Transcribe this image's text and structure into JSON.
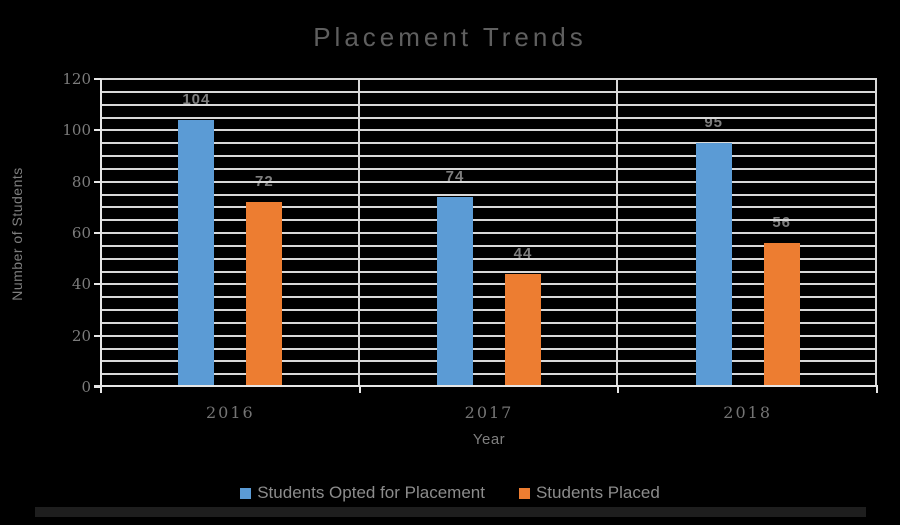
{
  "chart_data": {
    "type": "bar",
    "title": "Placement Trends",
    "xlabel": "Year",
    "ylabel": "Number of Students",
    "categories": [
      "2016",
      "2017",
      "2018"
    ],
    "series": [
      {
        "name": "Students Opted for Placement",
        "color": "#5B9BD5",
        "values": [
          104,
          74,
          95
        ]
      },
      {
        "name": "Students Placed",
        "color": "#ED7D31",
        "values": [
          72,
          44,
          56
        ]
      }
    ],
    "ylim": [
      0,
      120
    ],
    "y_major_step": 20,
    "y_minor_step": 5,
    "grid": true,
    "legend_position": "bottom",
    "background_color": "#000000",
    "data_labels": true
  }
}
